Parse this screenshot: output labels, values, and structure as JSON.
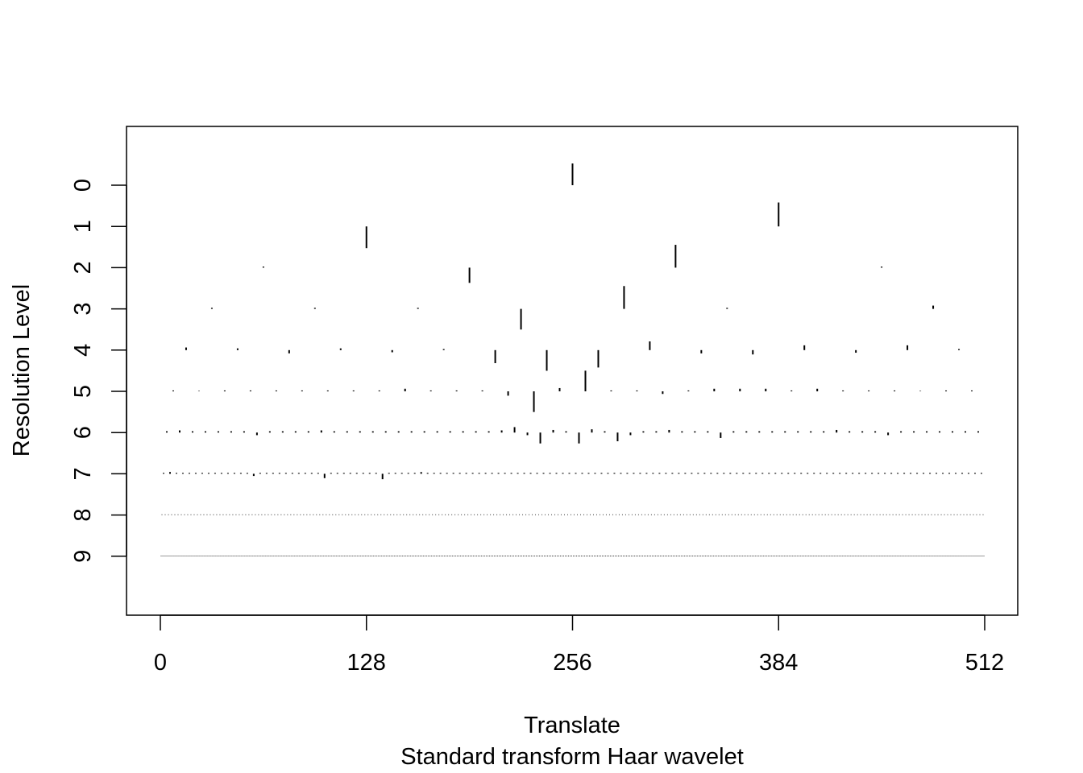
{
  "chart_data": {
    "type": "wavelet-coefficient-plot",
    "xlabel": "Translate",
    "subtitle": "Standard transform Haar wavelet",
    "ylabel": "Resolution Level",
    "xlim": [
      0,
      512
    ],
    "x_ticks": [
      0,
      128,
      256,
      384,
      512
    ],
    "y_ticks": [
      0,
      1,
      2,
      3,
      4,
      5,
      6,
      7,
      8,
      9
    ],
    "levels": [
      {
        "level": 0,
        "values": [
          1.0
        ]
      },
      {
        "level": 1,
        "values": [
          -1.0,
          1.1
        ]
      },
      {
        "level": 2,
        "values": [
          0.05,
          -0.7,
          1.05,
          0.05
        ]
      },
      {
        "level": 3,
        "values": [
          0.05,
          0.05,
          0.05,
          -0.95,
          1.05,
          0.05,
          0.0,
          0.15
        ]
      },
      {
        "level": 4,
        "values": [
          0.12,
          0.08,
          -0.15,
          0.08,
          -0.1,
          0.05,
          -0.6,
          -0.95,
          -0.8,
          0.4,
          -0.15,
          -0.2,
          0.22,
          -0.12,
          0.22,
          0.05
        ]
      },
      {
        "level": 5,
        "values": [
          0.04,
          0.02,
          0.04,
          0.04,
          0.04,
          0.04,
          0.04,
          0.04,
          0.04,
          0.12,
          0.04,
          0.04,
          0.04,
          -0.2,
          -0.95,
          0.15,
          0.95,
          0.04,
          0.04,
          -0.12,
          0.04,
          0.12,
          0.12,
          0.12,
          0.04,
          0.12,
          0.04,
          0.04
        ]
      },
      {
        "level": 6,
        "values": [
          0.06,
          0.1,
          0.06,
          0.06,
          0.06,
          0.06,
          0.06,
          -0.12,
          0.06,
          0.06,
          0.06,
          0.06,
          0.1,
          0.06,
          0.06,
          0.06,
          0.06,
          0.06,
          0.06,
          0.06,
          0.06,
          0.06,
          0.06,
          0.06,
          0.06,
          0.06,
          0.1,
          0.25,
          -0.12,
          -0.5,
          0.12,
          0.06,
          -0.5,
          0.15,
          0.06,
          -0.4,
          -0.12,
          0.06,
          0.06,
          0.12,
          0.06,
          0.06,
          0.06,
          -0.25,
          0.06,
          0.06,
          0.06,
          0.06,
          0.06,
          0.06,
          0.06,
          0.06,
          0.12,
          0.06,
          0.06,
          0.06,
          -0.12,
          0.06,
          0.06,
          0.06,
          0.06,
          0.06,
          0.06,
          0.06
        ]
      },
      {
        "level": 7,
        "values": [
          0.04,
          0.08,
          0.04,
          0.04,
          0.04,
          0.04,
          0.04,
          0.04,
          0.04,
          0.04,
          0.04,
          0.04,
          0.04,
          0.04,
          -0.1,
          0.04,
          0.04,
          0.04,
          0.04,
          0.04,
          0.04,
          0.04,
          0.04,
          0.04,
          0.04,
          -0.2,
          0.04,
          0.04,
          0.04,
          0.04,
          0.04,
          0.04,
          0.04,
          0.04,
          -0.25,
          0.04,
          0.04,
          0.04,
          0.04,
          0.04,
          0.08,
          0.04,
          0.04,
          0.04,
          0.04,
          0.04,
          0.04,
          0.04,
          0.04,
          0.04,
          0.04,
          0.04,
          0.04,
          0.04,
          0.04,
          0.04,
          0.04,
          0.04,
          0.04,
          0.04,
          0.04,
          0.04,
          0.04,
          0.04,
          0.04,
          0.04,
          0.04,
          0.04,
          0.04,
          0.04,
          0.04,
          0.04,
          0.04,
          0.04,
          0.04,
          0.04,
          0.04,
          0.04,
          0.04,
          0.04,
          0.04,
          0.04,
          0.04,
          0.04,
          0.04,
          0.04,
          0.04,
          0.04,
          0.04,
          0.04,
          0.04,
          0.04,
          0.04,
          0.04,
          0.04,
          0.04,
          0.04,
          0.04,
          0.04,
          0.04,
          0.04,
          0.04,
          0.04,
          0.04,
          0.04,
          0.04,
          0.04,
          0.04,
          0.04,
          0.04,
          0.04,
          0.04,
          0.04,
          0.04,
          0.04,
          0.04,
          0.04,
          0.04,
          0.04,
          0.04,
          0.04,
          0.04,
          0.04,
          0.04,
          0.04,
          0.04,
          0.04,
          0.04
        ]
      },
      {
        "level": 8,
        "values": [
          0.03
        ]
      },
      {
        "level": 9,
        "values": [
          0.03
        ]
      }
    ]
  }
}
